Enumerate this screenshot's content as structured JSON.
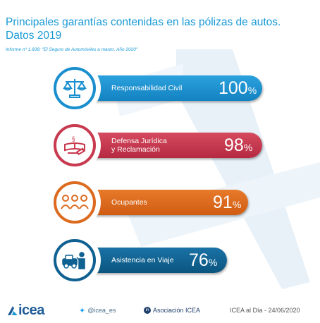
{
  "header": {
    "title_line1": "Principales garantías contenidas en las pólizas de autos.",
    "title_line2": "Datos 2019",
    "source": "Informe nº 1.608: \"El Seguro de Automóviles a marzo. Año 2020\""
  },
  "chart_data": {
    "type": "bar",
    "title": "Principales garantías contenidas en las pólizas de autos. Datos 2019",
    "categories": [
      "Responsabilidad Civil",
      "Defensa Jurídica y Reclamación",
      "Ocupantes",
      "Asistencia en Viaje"
    ],
    "values": [
      100,
      98,
      91,
      76
    ],
    "unit": "%",
    "colors": [
      "#1a8fcf",
      "#c83a4f",
      "#dd6b1f",
      "#0f6192"
    ],
    "icons": [
      "scales-icon",
      "gavel-book-icon",
      "people-group-icon",
      "tow-truck-icon"
    ]
  },
  "rows": [
    {
      "label_line1": "Responsabilidad Civil",
      "label_line2": "",
      "value": "100",
      "sign": "%"
    },
    {
      "label_line1": "Defensa Jurídica",
      "label_line2": "y Reclamación",
      "value": "98",
      "sign": "%"
    },
    {
      "label_line1": "Ocupantes",
      "label_line2": "",
      "value": "91",
      "sign": "%"
    },
    {
      "label_line1": "Asistencia en Viaje",
      "label_line2": "",
      "value": "76",
      "sign": "%"
    }
  ],
  "footer": {
    "logo": "icea",
    "twitter": "@icea_es",
    "linkedin": "Asociación ICEA",
    "credit": "ICEA al Día - 24/06/2020"
  }
}
